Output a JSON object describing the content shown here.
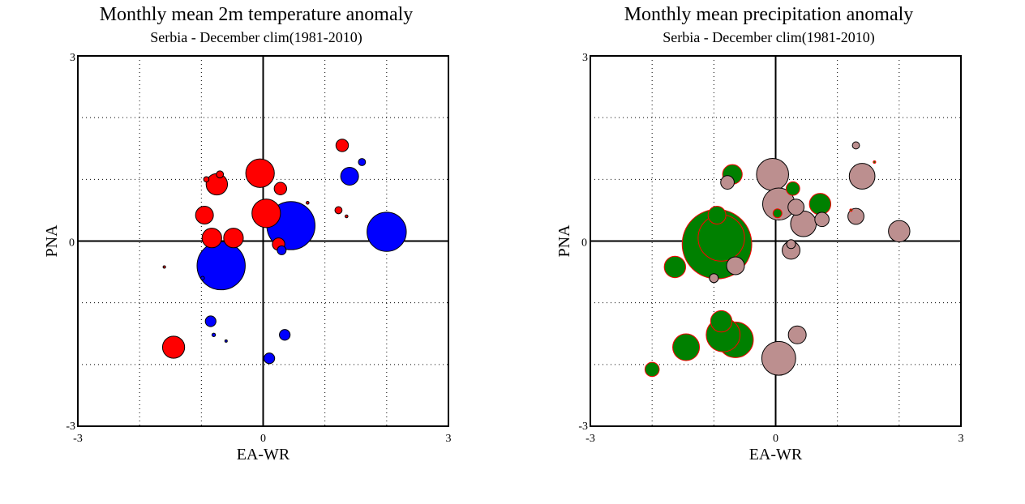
{
  "chart_data": [
    {
      "type": "scatter",
      "title": "Monthly mean 2m temperature anomaly",
      "subtitle": "Serbia - December  clim(1981-2010)",
      "xlabel": "EA-WR",
      "ylabel": "PNA",
      "xlim": [
        -3,
        3
      ],
      "ylim": [
        -3,
        3
      ],
      "x_ticks": [
        "-3",
        "0",
        "3"
      ],
      "y_ticks": [
        "-3",
        "0",
        "3"
      ],
      "grid": true,
      "grid_step": 1,
      "positive_color": "#ff0000",
      "negative_color": "#0000ff",
      "points": [
        {
          "x": -0.05,
          "y": 1.1,
          "size": 0.8,
          "sign": "positive"
        },
        {
          "x": -0.75,
          "y": 0.92,
          "size": 0.6,
          "sign": "positive"
        },
        {
          "x": -0.7,
          "y": 1.08,
          "size": 0.2,
          "sign": "positive"
        },
        {
          "x": -0.92,
          "y": 1.0,
          "size": 0.15,
          "sign": "positive"
        },
        {
          "x": -0.95,
          "y": 0.42,
          "size": 0.5,
          "sign": "positive"
        },
        {
          "x": -0.83,
          "y": 0.05,
          "size": 0.55,
          "sign": "positive"
        },
        {
          "x": -0.48,
          "y": 0.05,
          "size": 0.55,
          "sign": "positive"
        },
        {
          "x": 0.05,
          "y": 0.45,
          "size": 0.8,
          "sign": "positive"
        },
        {
          "x": 0.28,
          "y": 0.85,
          "size": 0.35,
          "sign": "positive"
        },
        {
          "x": 0.25,
          "y": -0.05,
          "size": 0.35,
          "sign": "positive"
        },
        {
          "x": 0.72,
          "y": 0.62,
          "size": 0.08,
          "sign": "positive"
        },
        {
          "x": 1.28,
          "y": 1.55,
          "size": 0.35,
          "sign": "positive"
        },
        {
          "x": 1.22,
          "y": 0.5,
          "size": 0.2,
          "sign": "positive"
        },
        {
          "x": 1.35,
          "y": 0.4,
          "size": 0.08,
          "sign": "positive"
        },
        {
          "x": -1.6,
          "y": -0.42,
          "size": 0.07,
          "sign": "positive"
        },
        {
          "x": -1.45,
          "y": -1.72,
          "size": 0.62,
          "sign": "positive"
        },
        {
          "x": 0.45,
          "y": 0.25,
          "size": 1.35,
          "sign": "negative"
        },
        {
          "x": 2.0,
          "y": 0.15,
          "size": 1.1,
          "sign": "negative"
        },
        {
          "x": -0.68,
          "y": -0.4,
          "size": 1.35,
          "sign": "negative"
        },
        {
          "x": 1.4,
          "y": 1.05,
          "size": 0.5,
          "sign": "negative"
        },
        {
          "x": 1.6,
          "y": 1.28,
          "size": 0.2,
          "sign": "negative"
        },
        {
          "x": 0.3,
          "y": -0.15,
          "size": 0.25,
          "sign": "negative"
        },
        {
          "x": -0.98,
          "y": -0.6,
          "size": 0.1,
          "sign": "negative"
        },
        {
          "x": -0.85,
          "y": -1.3,
          "size": 0.3,
          "sign": "negative"
        },
        {
          "x": -0.8,
          "y": -1.52,
          "size": 0.1,
          "sign": "negative"
        },
        {
          "x": -0.6,
          "y": -1.62,
          "size": 0.06,
          "sign": "negative"
        },
        {
          "x": 0.35,
          "y": -1.52,
          "size": 0.3,
          "sign": "negative"
        },
        {
          "x": 0.1,
          "y": -1.9,
          "size": 0.3,
          "sign": "negative"
        }
      ]
    },
    {
      "type": "scatter",
      "title": "Monthly mean precipitation anomaly",
      "subtitle": "Serbia - December  clim(1981-2010)",
      "xlabel": "EA-WR",
      "ylabel": "PNA",
      "xlim": [
        -3,
        3
      ],
      "ylim": [
        -3,
        3
      ],
      "x_ticks": [
        "-3",
        "0",
        "3"
      ],
      "y_ticks": [
        "-3",
        "0",
        "3"
      ],
      "grid": true,
      "grid_step": 1,
      "positive_color": "#008000",
      "negative_color": "#bc8f8f",
      "points": [
        {
          "x": -0.95,
          "y": -0.05,
          "size": 1.95,
          "sign": "positive"
        },
        {
          "x": -0.88,
          "y": 0.05,
          "size": 1.3,
          "sign": "positive"
        },
        {
          "x": -0.7,
          "y": 1.08,
          "size": 0.55,
          "sign": "positive"
        },
        {
          "x": -0.95,
          "y": 0.42,
          "size": 0.5,
          "sign": "positive"
        },
        {
          "x": -1.63,
          "y": -0.42,
          "size": 0.6,
          "sign": "positive"
        },
        {
          "x": -1.45,
          "y": -1.72,
          "size": 0.75,
          "sign": "positive"
        },
        {
          "x": -2.0,
          "y": -2.08,
          "size": 0.4,
          "sign": "positive"
        },
        {
          "x": -0.88,
          "y": -1.3,
          "size": 0.6,
          "sign": "positive"
        },
        {
          "x": -0.85,
          "y": -1.52,
          "size": 0.95,
          "sign": "positive"
        },
        {
          "x": -0.65,
          "y": -1.6,
          "size": 1.0,
          "sign": "positive"
        },
        {
          "x": 0.72,
          "y": 0.6,
          "size": 0.6,
          "sign": "positive"
        },
        {
          "x": 0.28,
          "y": 0.85,
          "size": 0.38,
          "sign": "positive"
        },
        {
          "x": 0.03,
          "y": 0.45,
          "size": 0.25,
          "sign": "positive"
        },
        {
          "x": 1.6,
          "y": 1.28,
          "size": 0.07,
          "sign": "positive"
        },
        {
          "x": 1.22,
          "y": 0.5,
          "size": 0.05,
          "sign": "positive"
        },
        {
          "x": -0.05,
          "y": 1.08,
          "size": 0.9,
          "sign": "negative"
        },
        {
          "x": 0.05,
          "y": 0.6,
          "size": 0.9,
          "sign": "negative"
        },
        {
          "x": 0.45,
          "y": 0.28,
          "size": 0.72,
          "sign": "negative"
        },
        {
          "x": 0.33,
          "y": 0.55,
          "size": 0.45,
          "sign": "negative"
        },
        {
          "x": 0.75,
          "y": 0.35,
          "size": 0.4,
          "sign": "negative"
        },
        {
          "x": 1.4,
          "y": 1.05,
          "size": 0.72,
          "sign": "negative"
        },
        {
          "x": 1.3,
          "y": 0.4,
          "size": 0.45,
          "sign": "negative"
        },
        {
          "x": 2.0,
          "y": 0.16,
          "size": 0.6,
          "sign": "negative"
        },
        {
          "x": 1.3,
          "y": 1.55,
          "size": 0.2,
          "sign": "negative"
        },
        {
          "x": -0.78,
          "y": 0.95,
          "size": 0.38,
          "sign": "negative"
        },
        {
          "x": 0.25,
          "y": -0.15,
          "size": 0.5,
          "sign": "negative"
        },
        {
          "x": 0.25,
          "y": -0.05,
          "size": 0.25,
          "sign": "negative"
        },
        {
          "x": 0.35,
          "y": -1.52,
          "size": 0.5,
          "sign": "negative"
        },
        {
          "x": 0.05,
          "y": -1.9,
          "size": 0.95,
          "sign": "negative"
        },
        {
          "x": -0.65,
          "y": -0.4,
          "size": 0.5,
          "sign": "negative"
        },
        {
          "x": -1.0,
          "y": -0.6,
          "size": 0.25,
          "sign": "negative"
        }
      ]
    }
  ]
}
